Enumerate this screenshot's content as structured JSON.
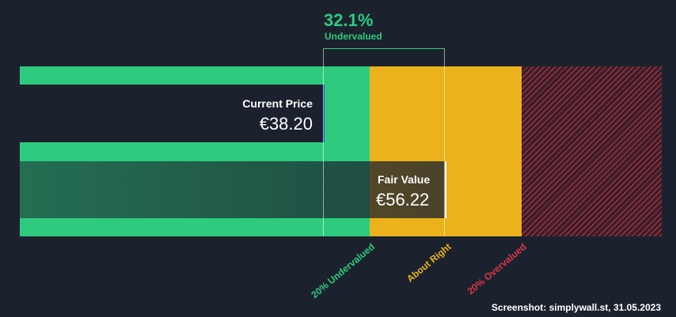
{
  "chart_data": {
    "type": "bar",
    "title": "",
    "valuation": {
      "percent_text": "32.1%",
      "status_text": "Undervalued",
      "percent": 32.1
    },
    "current_price": {
      "label": "Current Price",
      "value_text": "€38.20",
      "value": 38.2
    },
    "fair_value": {
      "label": "Fair Value",
      "value_text": "€56.22",
      "value": 56.22
    },
    "zones": [
      {
        "label": "20% Undervalued",
        "color": "#2ecb7f"
      },
      {
        "label": "About Right",
        "color": "#ecb21b"
      },
      {
        "label": "20% Overvalued",
        "color": "#e0344a"
      }
    ]
  },
  "footer": {
    "text": "Screenshot: simplywall.st, 31.05.2023"
  }
}
